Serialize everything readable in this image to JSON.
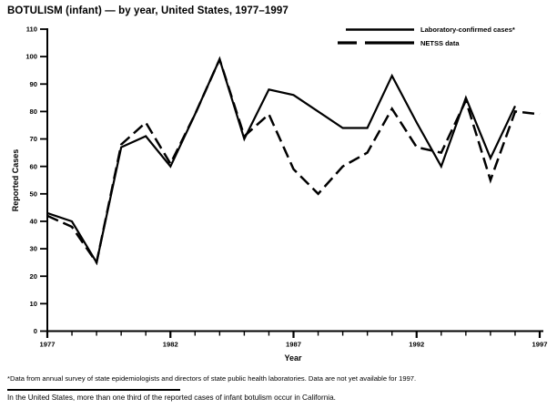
{
  "title": "BOTULISM (infant) — by year, United States, 1977–1997",
  "colors": {
    "line": "#000000",
    "background": "#ffffff",
    "text": "#000000"
  },
  "legend": {
    "items": [
      {
        "label": "Laboratory-confirmed cases*",
        "style": "solid"
      },
      {
        "label": "NETSS data",
        "style": "dashed"
      }
    ],
    "position": "top-right"
  },
  "chart_data": {
    "type": "line",
    "title": "BOTULISM (infant) — by year, United States, 1977–1997",
    "xlabel": "Year",
    "ylabel": "Reported Cases",
    "ylim": [
      0,
      110
    ],
    "xlim": [
      1977,
      1997
    ],
    "grid": false,
    "legend_position": "top-right",
    "y_ticks": [
      0,
      10,
      20,
      30,
      40,
      50,
      60,
      70,
      80,
      90,
      100,
      110
    ],
    "x_major_ticks": [
      1977,
      1982,
      1987,
      1992,
      1997
    ],
    "x_minor_tick_interval": 1,
    "x": [
      1977,
      1978,
      1979,
      1980,
      1981,
      1982,
      1983,
      1984,
      1985,
      1986,
      1987,
      1988,
      1989,
      1990,
      1991,
      1992,
      1993,
      1994,
      1995,
      1996,
      1997
    ],
    "series": [
      {
        "name": "Laboratory-confirmed cases*",
        "style": "solid",
        "values": [
          43,
          40,
          25,
          67,
          71,
          60,
          79,
          99,
          70,
          88,
          86,
          80,
          74,
          74,
          93,
          76,
          60,
          85,
          63,
          82,
          null
        ],
        "note": "no data for 1997"
      },
      {
        "name": "NETSS data",
        "style": "dashed",
        "values": [
          42,
          38,
          25,
          68,
          76,
          61,
          79,
          99,
          71,
          79,
          59,
          50,
          60,
          65,
          81,
          67,
          65,
          84,
          55,
          80,
          79
        ]
      }
    ]
  },
  "footnotes": {
    "footnote_1": "*Data from annual survey of state epidemiologists and directors of state public health laboratories. Data are not yet available for 1997.",
    "footnote_2": "In the United States, more than one third of the reported cases of infant botulism occur in California."
  }
}
